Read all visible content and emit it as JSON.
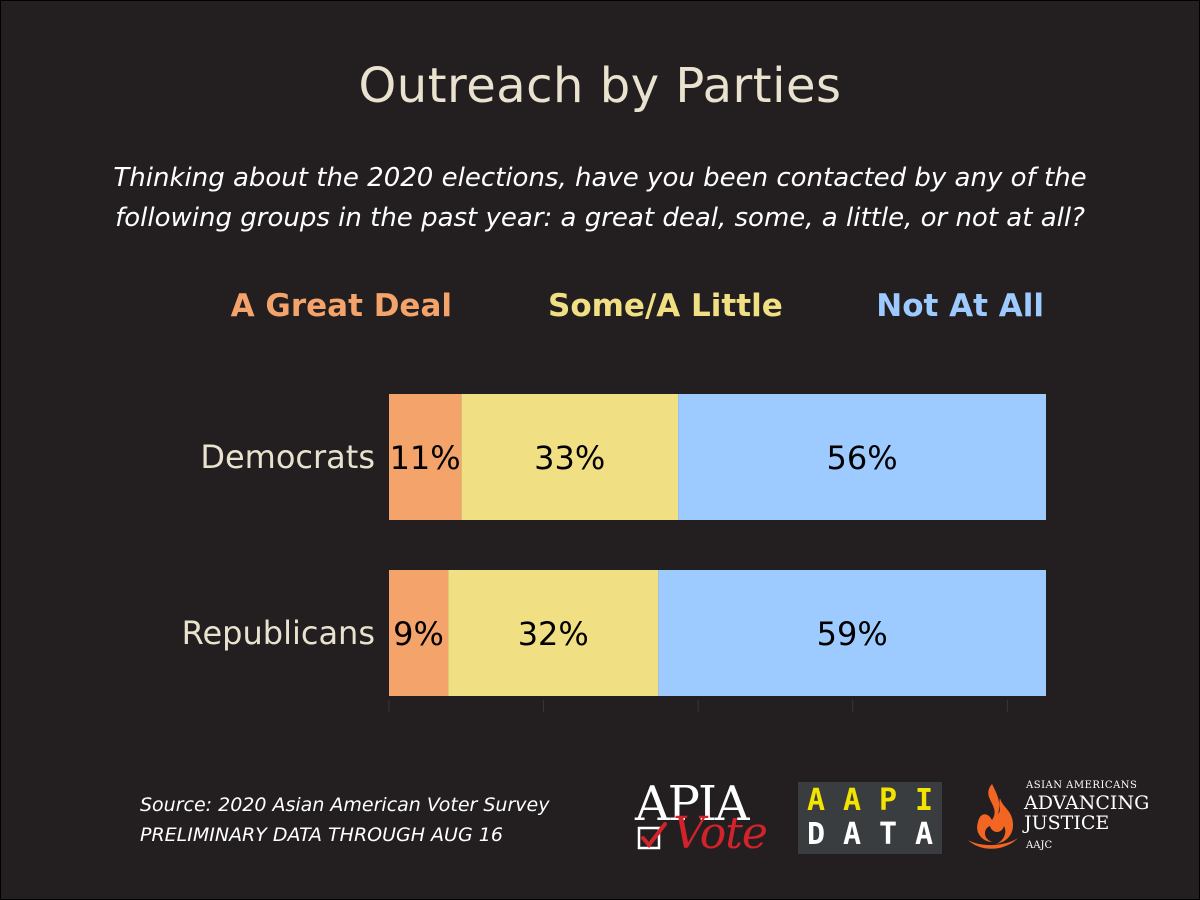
{
  "title": "Outreach by Parties",
  "question": "Thinking about the 2020 elections, have you been contacted by any of the following groups in the past year: a great deal, some, a little, or not at all?",
  "legend": {
    "great": "A Great Deal",
    "some": "Some/A Little",
    "none": "Not At All"
  },
  "colors": {
    "background": "#231f20",
    "great": "#f4a46a",
    "some": "#f1df84",
    "none": "#9ecbff",
    "text": "#e9e2cf"
  },
  "chart_data": {
    "type": "bar",
    "orientation": "horizontal",
    "stacked": true,
    "categories": [
      "Democrats",
      "Republicans"
    ],
    "series": [
      {
        "name": "A Great Deal",
        "values": [
          11,
          9
        ]
      },
      {
        "name": "Some/A Little",
        "values": [
          33,
          32
        ]
      },
      {
        "name": "Not At All",
        "values": [
          56,
          59
        ]
      }
    ],
    "value_labels": [
      [
        "11%",
        "33%",
        "56%"
      ],
      [
        "9%",
        "32%",
        "59%"
      ]
    ],
    "xlim": [
      0,
      100
    ],
    "legend": "top",
    "grid": false
  },
  "source": {
    "line1": "Source: 2020 Asian American Voter Survey",
    "line2": "PRELIMINARY DATA THROUGH AUG 16"
  },
  "logos": {
    "apia": {
      "top": "APIA",
      "bottom": "Vote"
    },
    "aapi": {
      "row1": [
        "A",
        "A",
        "P",
        "I"
      ],
      "row2": [
        "D",
        "A",
        "T",
        "A"
      ]
    },
    "aajc": {
      "small": "ASIAN AMERICANS",
      "line1": "ADVANCING",
      "line2": "JUSTICE",
      "tiny": "AAJC"
    }
  }
}
